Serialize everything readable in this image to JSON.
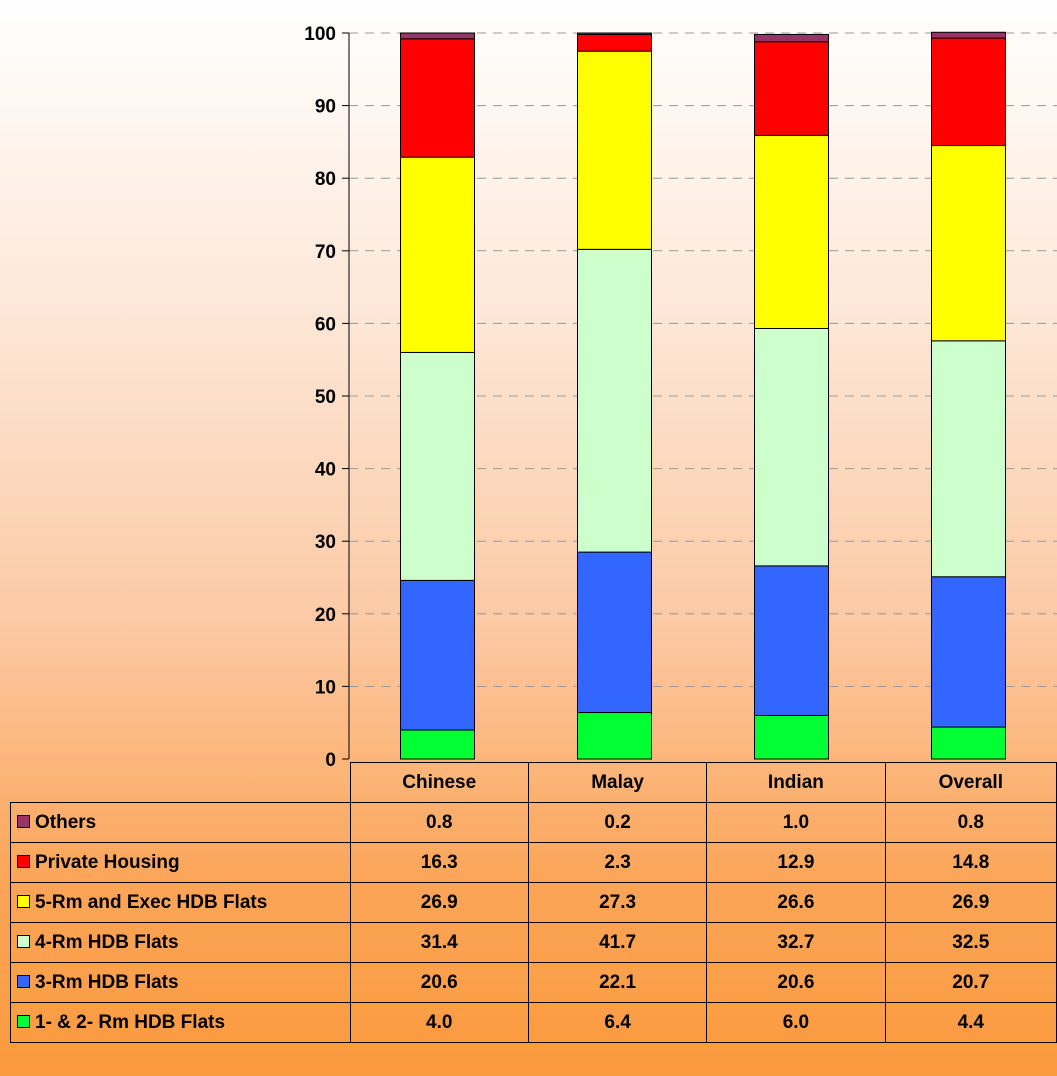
{
  "chart_data": {
    "type": "bar",
    "stacked": true,
    "categories": [
      "Chinese",
      "Malay",
      "Indian",
      "Overall"
    ],
    "ylim": [
      0,
      100
    ],
    "yticks": [
      0,
      10,
      20,
      30,
      40,
      50,
      60,
      70,
      80,
      90,
      100
    ],
    "grid": "horizontal dashed",
    "legend": "data table below chart",
    "series": [
      {
        "name": "1- & 2- Rm HDB Flats",
        "color": "#00ff33",
        "values": [
          4.0,
          6.4,
          6.0,
          4.4
        ],
        "labels": [
          "4.0",
          "6.4",
          "6.0",
          "4.4"
        ]
      },
      {
        "name": "3-Rm HDB Flats",
        "color": "#3366ff",
        "values": [
          20.6,
          22.1,
          20.6,
          20.7
        ],
        "labels": [
          "20.6",
          "22.1",
          "20.6",
          "20.7"
        ]
      },
      {
        "name": "4-Rm HDB Flats",
        "color": "#ccffcc",
        "values": [
          31.4,
          41.7,
          32.7,
          32.5
        ],
        "labels": [
          "31.4",
          "41.7",
          "32.7",
          "32.5"
        ]
      },
      {
        "name": "5-Rm and Exec HDB Flats",
        "color": "#ffff00",
        "values": [
          26.9,
          27.3,
          26.6,
          26.9
        ],
        "labels": [
          "26.9",
          "27.3",
          "26.6",
          "26.9"
        ]
      },
      {
        "name": "Private Housing",
        "color": "#ff0000",
        "values": [
          16.3,
          2.3,
          12.9,
          14.8
        ],
        "labels": [
          "16.3",
          "2.3",
          "12.9",
          "14.8"
        ]
      },
      {
        "name": "Others",
        "color": "#993366",
        "values": [
          0.8,
          0.2,
          1.0,
          0.8
        ],
        "labels": [
          "0.8",
          "0.2",
          "1.0",
          "0.8"
        ]
      }
    ]
  }
}
